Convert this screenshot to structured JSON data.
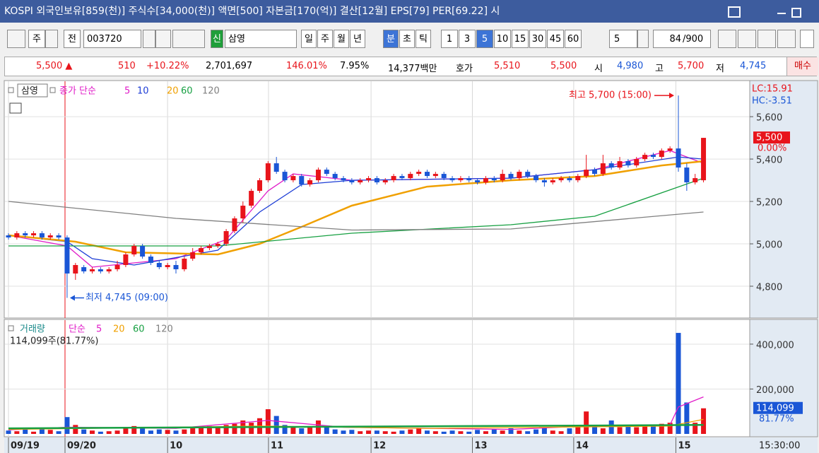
{
  "window": {
    "title": "KOSPI 외국인보유[859(천)] 주식수[34,000(천)] 액면[500] 자본금[170(억)] 결산[12월] EPS[79] PER[69.22] 시"
  },
  "toolbar": {
    "market": "주",
    "mode": "전",
    "code": "003720",
    "badge": "신",
    "name": "삼영",
    "periods": [
      "일",
      "주",
      "월",
      "년",
      "분",
      "초",
      "틱"
    ],
    "intervals": [
      "1",
      "3",
      "5",
      "10",
      "15",
      "30",
      "45",
      "60"
    ],
    "unit": "5",
    "count": "84",
    "total": "/900"
  },
  "info_bar": {
    "price": "5,500 ▲",
    "change": "510",
    "change_rate": "+10.22%",
    "volume": "2,701,697",
    "volume_rate": "146.01%",
    "turnover": "7.95%",
    "amount": "14,377백만",
    "quote_label": "호가",
    "ask": "5,510",
    "bid": "5,500",
    "open_label": "시",
    "open": "4,980",
    "high_label": "고",
    "high": "5,700",
    "low_label": "저",
    "low": "4,745",
    "action": "매수"
  },
  "chart_data": [
    {
      "type": "candlestick",
      "legend_label": "삼영",
      "ma_label": "종가 단순",
      "up_color": "#e8141b",
      "down_color": "#1a56d6",
      "open": [
        5040,
        5030,
        5050,
        5040,
        5050,
        5030,
        5040,
        5030,
        4860,
        4890,
        4870,
        4880,
        4870,
        4880,
        4900,
        4950,
        4990,
        4940,
        4910,
        4890,
        4900,
        4880,
        4930,
        4960,
        4980,
        4990,
        5000,
        5060,
        5120,
        5180,
        5250,
        5300,
        5380,
        5340,
        5300,
        5320,
        5280,
        5300,
        5350,
        5330,
        5310,
        5300,
        5290,
        5300,
        5310,
        5290,
        5300,
        5320,
        5310,
        5330,
        5340,
        5320,
        5330,
        5310,
        5300,
        5310,
        5300,
        5290,
        5310,
        5300,
        5330,
        5310,
        5340,
        5320,
        5300,
        5290,
        5300,
        5310,
        5300,
        5320,
        5350,
        5330,
        5380,
        5360,
        5390,
        5370,
        5400,
        5420,
        5410,
        5440,
        5450,
        5360,
        5290,
        5300
      ],
      "high": [
        5050,
        5060,
        5060,
        5060,
        5060,
        5050,
        5050,
        5040,
        4910,
        4900,
        4890,
        4890,
        4890,
        4920,
        4960,
        5000,
        5000,
        4950,
        4920,
        4910,
        4920,
        4940,
        4980,
        4990,
        5000,
        5010,
        5070,
        5130,
        5200,
        5260,
        5310,
        5390,
        5410,
        5350,
        5330,
        5330,
        5310,
        5360,
        5360,
        5340,
        5320,
        5310,
        5310,
        5320,
        5320,
        5310,
        5330,
        5330,
        5340,
        5350,
        5350,
        5340,
        5340,
        5320,
        5320,
        5320,
        5310,
        5320,
        5320,
        5350,
        5340,
        5350,
        5350,
        5330,
        5310,
        5310,
        5320,
        5320,
        5330,
        5420,
        5360,
        5420,
        5390,
        5410,
        5400,
        5410,
        5430,
        5430,
        5450,
        5460,
        5700,
        5380,
        5330,
        5500
      ],
      "low": [
        5020,
        5020,
        5030,
        5030,
        5020,
        5020,
        5020,
        4745,
        4830,
        4860,
        4860,
        4860,
        4860,
        4870,
        4890,
        4940,
        4930,
        4900,
        4880,
        4880,
        4860,
        4870,
        4920,
        4950,
        4970,
        4980,
        4990,
        5050,
        5100,
        5170,
        5240,
        5290,
        5330,
        5290,
        5290,
        5270,
        5270,
        5290,
        5320,
        5300,
        5290,
        5280,
        5280,
        5290,
        5280,
        5280,
        5290,
        5300,
        5300,
        5320,
        5310,
        5310,
        5300,
        5290,
        5290,
        5290,
        5280,
        5280,
        5290,
        5290,
        5300,
        5300,
        5310,
        5290,
        5270,
        5280,
        5290,
        5290,
        5290,
        5310,
        5320,
        5320,
        5350,
        5350,
        5360,
        5360,
        5390,
        5400,
        5400,
        5430,
        5340,
        5250,
        5280,
        5290
      ],
      "close": [
        5030,
        5050,
        5040,
        5050,
        5030,
        5040,
        5030,
        4860,
        4900,
        4870,
        4880,
        4870,
        4880,
        4900,
        4950,
        4990,
        4940,
        4910,
        4890,
        4900,
        4880,
        4930,
        4960,
        4980,
        4990,
        5000,
        5060,
        5120,
        5180,
        5250,
        5300,
        5380,
        5340,
        5300,
        5320,
        5280,
        5300,
        5350,
        5330,
        5310,
        5300,
        5290,
        5300,
        5310,
        5290,
        5300,
        5320,
        5310,
        5330,
        5340,
        5320,
        5330,
        5310,
        5300,
        5310,
        5300,
        5290,
        5310,
        5300,
        5330,
        5310,
        5340,
        5320,
        5300,
        5290,
        5300,
        5310,
        5300,
        5320,
        5350,
        5330,
        5380,
        5360,
        5390,
        5370,
        5400,
        5420,
        5410,
        5440,
        5450,
        5360,
        5290,
        5310,
        5500
      ],
      "series": [
        {
          "name": "5",
          "color": "#e01cc8",
          "x": [
            0,
            7,
            10,
            20,
            26,
            31,
            34,
            41,
            60,
            70,
            79,
            83
          ],
          "values": [
            5040,
            4990,
            4890,
            4930,
            5020,
            5250,
            5330,
            5300,
            5310,
            5350,
            5440,
            5380
          ]
        },
        {
          "name": "10",
          "color": "#1e3ed6",
          "x": [
            0,
            7,
            10,
            15,
            25,
            30,
            35,
            41,
            60,
            70,
            80,
            83
          ],
          "values": [
            5040,
            5010,
            4930,
            4900,
            4970,
            5150,
            5280,
            5300,
            5310,
            5350,
            5410,
            5400
          ]
        },
        {
          "name": "20",
          "color": "#f0a000",
          "x": [
            0,
            8,
            14,
            25,
            30,
            35,
            41,
            50,
            60,
            70,
            78,
            83
          ],
          "values": [
            5040,
            5010,
            4960,
            4950,
            5000,
            5080,
            5180,
            5270,
            5300,
            5320,
            5370,
            5390
          ]
        },
        {
          "name": "60",
          "color": "#17a042",
          "x": [
            0,
            25,
            41,
            60,
            70,
            83
          ],
          "values": [
            4990,
            4990,
            5050,
            5090,
            5130,
            5310
          ]
        },
        {
          "name": "120",
          "color": "#808080",
          "x": [
            0,
            20,
            41,
            60,
            83
          ],
          "values": [
            5200,
            5120,
            5065,
            5070,
            5150
          ]
        }
      ],
      "ylim": [
        4650,
        5767
      ],
      "yticks": [
        {
          "value": 4800,
          "label": "4,800"
        },
        {
          "value": 5000,
          "label": "5,000"
        },
        {
          "value": 5200,
          "label": "5,200"
        },
        {
          "value": 5400,
          "label": "5,400"
        },
        {
          "value": 5600,
          "label": "5,600"
        }
      ],
      "lc_label": "LC:15.91",
      "hc_label": "HC:-3.51",
      "last": {
        "value": 5500,
        "label": "5,500"
      },
      "last_change": "0.00%",
      "annotations": [
        {
          "text": "최고 5,700 (15:00)",
          "point": 80,
          "at": "high"
        },
        {
          "text": "최저 4,745 (09:00)",
          "point": 7,
          "at": "low"
        }
      ]
    },
    {
      "type": "bar",
      "legend_label": "거래량",
      "ma_label": "단순",
      "summary": "114,099주(81.77%)",
      "values": [
        15000,
        12000,
        20000,
        10000,
        25000,
        18000,
        12000,
        75000,
        40000,
        20000,
        15000,
        10000,
        12000,
        15000,
        30000,
        35000,
        25000,
        15000,
        20000,
        18000,
        15000,
        20000,
        25000,
        30000,
        35000,
        30000,
        40000,
        45000,
        60000,
        50000,
        70000,
        110000,
        80000,
        40000,
        30000,
        25000,
        35000,
        60000,
        30000,
        20000,
        15000,
        18000,
        12000,
        15000,
        15000,
        12000,
        10000,
        15000,
        20000,
        25000,
        15000,
        12000,
        10000,
        15000,
        12000,
        10000,
        18000,
        12000,
        20000,
        15000,
        25000,
        15000,
        12000,
        20000,
        30000,
        15000,
        12000,
        25000,
        30000,
        100000,
        40000,
        25000,
        60000,
        30000,
        35000,
        30000,
        40000,
        35000,
        45000,
        50000,
        450000,
        140000,
        50000,
        114099
      ],
      "series": [
        {
          "name": "5",
          "color": "#e01cc8",
          "x": [
            0,
            7,
            20,
            31,
            40,
            60,
            69,
            79,
            80,
            83
          ],
          "values": [
            18000,
            30000,
            25000,
            60000,
            30000,
            20000,
            35000,
            40000,
            120000,
            165000
          ]
        },
        {
          "name": "20",
          "color": "#f0a000",
          "x": [
            0,
            30,
            50,
            79,
            83
          ],
          "values": [
            20000,
            35000,
            25000,
            35000,
            65000
          ]
        },
        {
          "name": "60",
          "color": "#17a042",
          "x": [
            0,
            83
          ],
          "values": [
            25000,
            40000
          ]
        },
        {
          "name": "120",
          "color": "#808080",
          "x": [],
          "values": []
        }
      ],
      "ylim": [
        0,
        510000
      ],
      "yticks": [
        {
          "value": 200000,
          "label": "200,000"
        },
        {
          "value": 400000,
          "label": "400,000"
        }
      ],
      "last": {
        "value": 114099,
        "label": "114,099"
      },
      "last_rate": "81.77%",
      "xticks": [
        {
          "value": 0,
          "label": "09/19"
        },
        {
          "value": 6.75,
          "label": "09/20"
        },
        {
          "value": 19,
          "label": "10"
        },
        {
          "value": 31.05,
          "label": "11"
        },
        {
          "value": 43.3,
          "label": "12"
        },
        {
          "value": 55.4,
          "label": "13"
        },
        {
          "value": 67.5,
          "label": "14"
        },
        {
          "value": 79.7,
          "label": "15"
        }
      ],
      "time_label": "15:30:00"
    }
  ]
}
